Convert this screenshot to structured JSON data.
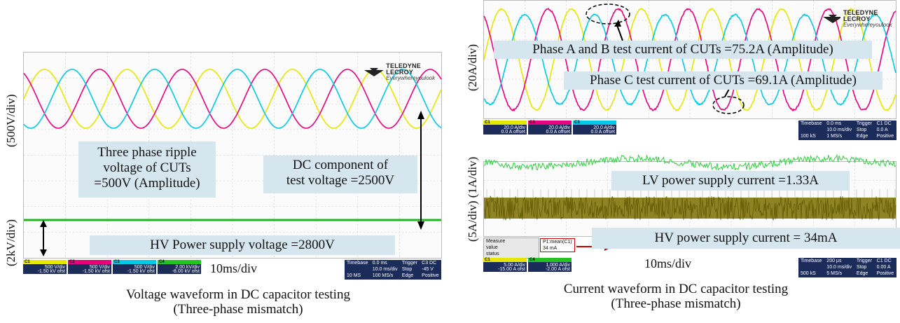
{
  "left": {
    "ylabel_top": "(500V/div)",
    "ylabel_bottom": "(2kV/div)",
    "logo_line1": "TELEDYNE LECROY",
    "logo_line2": "Everywhereyoulook",
    "annot_ripple": [
      "Three phase ripple",
      "voltage of CUTs",
      "=500V (Amplitude)"
    ],
    "annot_dc": [
      "DC component of",
      "test voltage =2500V"
    ],
    "annot_hv": "HV Power supply voltage =2800V",
    "timebase_label": "10ms/div",
    "channels": [
      {
        "name": "C1",
        "color": "#e6e600",
        "line1": "500 V/div",
        "line2": "-1.50 kV ofst"
      },
      {
        "name": "C2",
        "color": "#e6007e",
        "line1": "500 V/div",
        "line2": "-1.50 kV ofst"
      },
      {
        "name": "C3",
        "color": "#00c8e6",
        "line1": "500 V/div",
        "line2": "-1.50 kV ofst"
      },
      {
        "name": "C4",
        "color": "#22c322",
        "line1": "2.00 kV/div",
        "line2": "-8.00 kV ofst"
      }
    ],
    "timebase_box": [
      "Timebase",
      "0.0 ms",
      "Trigger",
      "C3 DC",
      "",
      "10.0 ms/div",
      "Stop",
      "-45 V",
      "10 MS",
      "100 MS/s",
      "Edge",
      "Positive"
    ],
    "caption": [
      "Voltage waveform in  DC capacitor testing",
      "(Three-phase mismatch)"
    ]
  },
  "right": {
    "ylabel_top": "(20A/div)",
    "ylabel_bottom": "(5A/div) (1A/div)",
    "logo_line1": "TELEDYNE LECROY",
    "logo_line2": "Everywhereyoulook",
    "annot_ab": "Phase A and B test current of CUTs =75.2A (Amplitude)",
    "annot_c": "Phase C test current of CUTs =69.1A (Amplitude)",
    "annot_lv": "LV power supply current =1.33A",
    "annot_hv": "HV power supply current = 34mA",
    "timebase_label": "10ms/div",
    "top_channels": [
      {
        "name": "C1",
        "color": "#e6e600",
        "line1": "20.0 A/div",
        "line2": "0.0 A offset"
      },
      {
        "name": "C2",
        "color": "#e6007e",
        "line1": "20.0 A/div",
        "line2": "0.0 A offset"
      },
      {
        "name": "C3",
        "color": "#00c8e6",
        "line1": "20.0 A/div",
        "line2": "0.0 A offset"
      }
    ],
    "top_timebase": [
      "Timebase",
      "0.0 ms",
      "Trigger",
      "C1 DC",
      "",
      "10.0 ms/div",
      "Stop",
      "0.0 A",
      "100 kS",
      "1 MS/s",
      "Edge",
      "Positive"
    ],
    "bottom_channels": [
      {
        "name": "C1",
        "color": "#e6e600",
        "line1": "5.00 A/div",
        "line2": "-15.00 A ofst"
      },
      {
        "name": "C4",
        "color": "#22c322",
        "line1": "1.000 A/div",
        "line2": "-2.00 A ofst"
      }
    ],
    "bottom_timebase": [
      "Timebase",
      "200 µs",
      "Trigger",
      "C1 DC",
      "",
      "10.0 ms/div",
      "Stop",
      "0.00 A",
      "500 kS",
      "5 MS/s",
      "Edge",
      "Positive"
    ],
    "measure": [
      "Measure",
      "value",
      "status"
    ],
    "measure_val": [
      "P1:mean(C1)",
      "34 mA"
    ],
    "caption": [
      "Current waveform in  DC capacitor testing",
      "(Three-phase mismatch)"
    ]
  },
  "colors": {
    "phase_a": "#e6e600",
    "phase_b": "#e6007e",
    "phase_c": "#00c8e6",
    "dc": "#22b322",
    "lv": "#2ecc40",
    "hv": "#7a6e00",
    "label_bg": "#d6e6ef"
  }
}
